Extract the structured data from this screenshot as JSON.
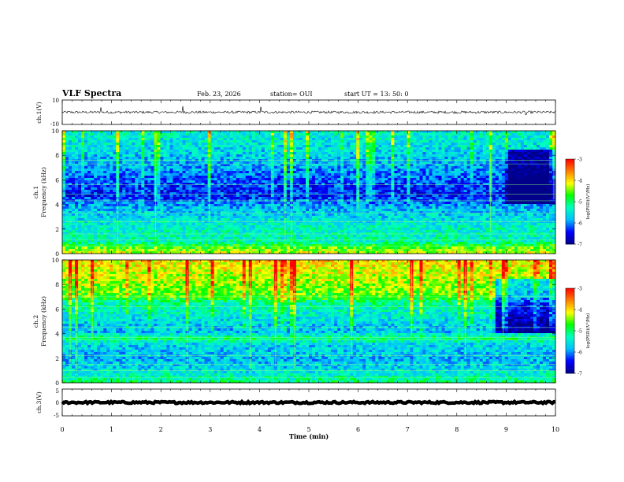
{
  "header": {
    "title": "VLF Spectra",
    "date": "Feb. 23, 2026",
    "station": "station= OUI",
    "start_ut": "start  UT  =   13: 50: 0"
  },
  "colors": {
    "waveform": "#000000",
    "frame": "#000000",
    "colormap": [
      "#00008b",
      "#0000ff",
      "#00bfff",
      "#00ffbf",
      "#00ff00",
      "#ffff00",
      "#ff7f00",
      "#ff0000",
      "#ffffff"
    ]
  },
  "chart_data": [
    {
      "type": "line",
      "name": "ch1-waveform",
      "ylabel": "ch.1(V)",
      "ylim": [
        -10,
        10
      ],
      "yticks": [
        "10",
        "-10"
      ],
      "xlim": [
        0,
        10
      ],
      "baseline": 0,
      "noise_amplitude": 1,
      "spikes": [
        [
          0.78,
          4
        ],
        [
          2.44,
          5
        ],
        [
          4.02,
          4.5
        ],
        [
          9.4,
          -2
        ]
      ]
    },
    {
      "type": "heatmap",
      "name": "ch1-spectrogram",
      "ylabel": "ch.1\nFrequency (kHz)",
      "ylabel_lines": [
        "ch.1",
        "Frequency (kHz)"
      ],
      "ylim": [
        0,
        10
      ],
      "yticks": [
        "0",
        "2",
        "4",
        "6",
        "8",
        "10"
      ],
      "xlim": [
        0,
        10
      ],
      "colorbar": {
        "label": "log(PSD)(V²/Hz)",
        "range": [
          -7,
          -3
        ],
        "ticks": [
          "-3",
          "-4",
          "-5",
          "-6",
          "-7"
        ]
      },
      "profile": [
        {
          "f": 0,
          "v": -4.2
        },
        {
          "f": 0.5,
          "v": -4.6
        },
        {
          "f": 1.0,
          "v": -5.3
        },
        {
          "f": 2.0,
          "v": -5.4
        },
        {
          "f": 3.0,
          "v": -5.6
        },
        {
          "f": 4.0,
          "v": -5.9
        },
        {
          "f": 4.6,
          "v": -6.4
        },
        {
          "f": 5.5,
          "v": -6.3
        },
        {
          "f": 7.0,
          "v": -5.9
        },
        {
          "f": 8.5,
          "v": -5.6
        },
        {
          "f": 10,
          "v": -5.4
        }
      ],
      "line_frequencies": [
        0.3,
        0.6,
        1.1,
        1.6,
        2.6,
        3.3,
        4.3,
        4.85,
        5.6,
        7.3,
        7.6
      ],
      "quiet_after": 9.0
    },
    {
      "type": "heatmap",
      "name": "ch2-spectrogram",
      "ylabel": "ch.2\nFrequency (kHz)",
      "ylabel_lines": [
        "ch.2",
        "Frequency (kHz)"
      ],
      "ylim": [
        0,
        10
      ],
      "yticks": [
        "0",
        "2",
        "4",
        "6",
        "8",
        "10"
      ],
      "xlim": [
        0,
        10
      ],
      "colorbar": {
        "label": "log(PSD)(V²/Hz)",
        "range": [
          -7,
          -3
        ],
        "ticks": [
          "-3",
          "-4",
          "-5",
          "-6",
          "-7"
        ]
      },
      "profile": [
        {
          "f": 0,
          "v": -5.0
        },
        {
          "f": 1.0,
          "v": -5.6
        },
        {
          "f": 2.0,
          "v": -5.8
        },
        {
          "f": 3.2,
          "v": -5.6
        },
        {
          "f": 3.6,
          "v": -5.0
        },
        {
          "f": 4.2,
          "v": -5.8
        },
        {
          "f": 5.0,
          "v": -5.6
        },
        {
          "f": 6.5,
          "v": -5.2
        },
        {
          "f": 7.0,
          "v": -4.6
        },
        {
          "f": 8.5,
          "v": -4.3
        },
        {
          "f": 10,
          "v": -4.0
        }
      ],
      "line_frequencies": [
        0.4,
        1.0,
        1.5,
        2.2,
        3.5,
        3.7,
        4.5,
        6.2,
        7.0
      ],
      "quiet_after": 8.8
    },
    {
      "type": "line",
      "name": "ch3-waveform",
      "ylabel": "ch.3(V)",
      "ylim": [
        -5,
        5
      ],
      "yticks": [
        "5",
        "0",
        "-5"
      ],
      "xlim": [
        0,
        10
      ],
      "baseline": 0,
      "noise_amplitude": 0.35,
      "spikes": []
    }
  ],
  "x_axis": {
    "label": "Time (min)",
    "ticks": [
      "0",
      "1",
      "2",
      "3",
      "4",
      "5",
      "6",
      "7",
      "8",
      "9",
      "10"
    ],
    "range": [
      0,
      10
    ]
  }
}
